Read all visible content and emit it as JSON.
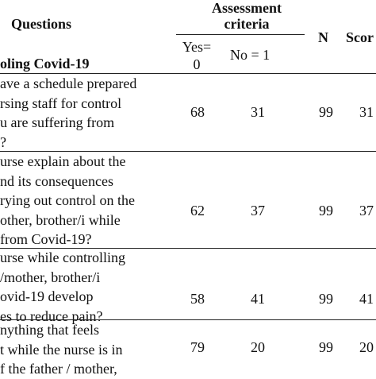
{
  "header": {
    "questions_label": "Questions",
    "assessment_line1": "Assessment",
    "assessment_line2": "criteria",
    "yes_line1": "Yes=",
    "yes_line2": "0",
    "no_label": "No = 1",
    "n_label": "N",
    "score_label": "Scor"
  },
  "section_title": "oling Covid-19",
  "rows": [
    {
      "lines": [
        "ave a schedule prepared",
        "rsing staff for control",
        "u are suffering from",
        "?"
      ],
      "yes": "68",
      "no": "31",
      "n": "99",
      "score": "31"
    },
    {
      "lines": [
        "urse explain about the",
        "nd its consequences",
        "rying out control on the",
        "other, brother/i while",
        " from Covid-19?"
      ],
      "yes": "62",
      "no": "37",
      "n": "99",
      "score": "37"
    },
    {
      "lines": [
        "urse while controlling",
        "/mother, brother/i",
        "ovid-19 develop",
        "es to reduce pain?"
      ],
      "yes": "58",
      "no": "41",
      "n": "99",
      "score": "41"
    },
    {
      "lines": [
        "nything that feels",
        "t while the nurse is in",
        "f the father / mother,"
      ],
      "yes": "79",
      "no": "20",
      "n": "99",
      "score": "20"
    }
  ]
}
